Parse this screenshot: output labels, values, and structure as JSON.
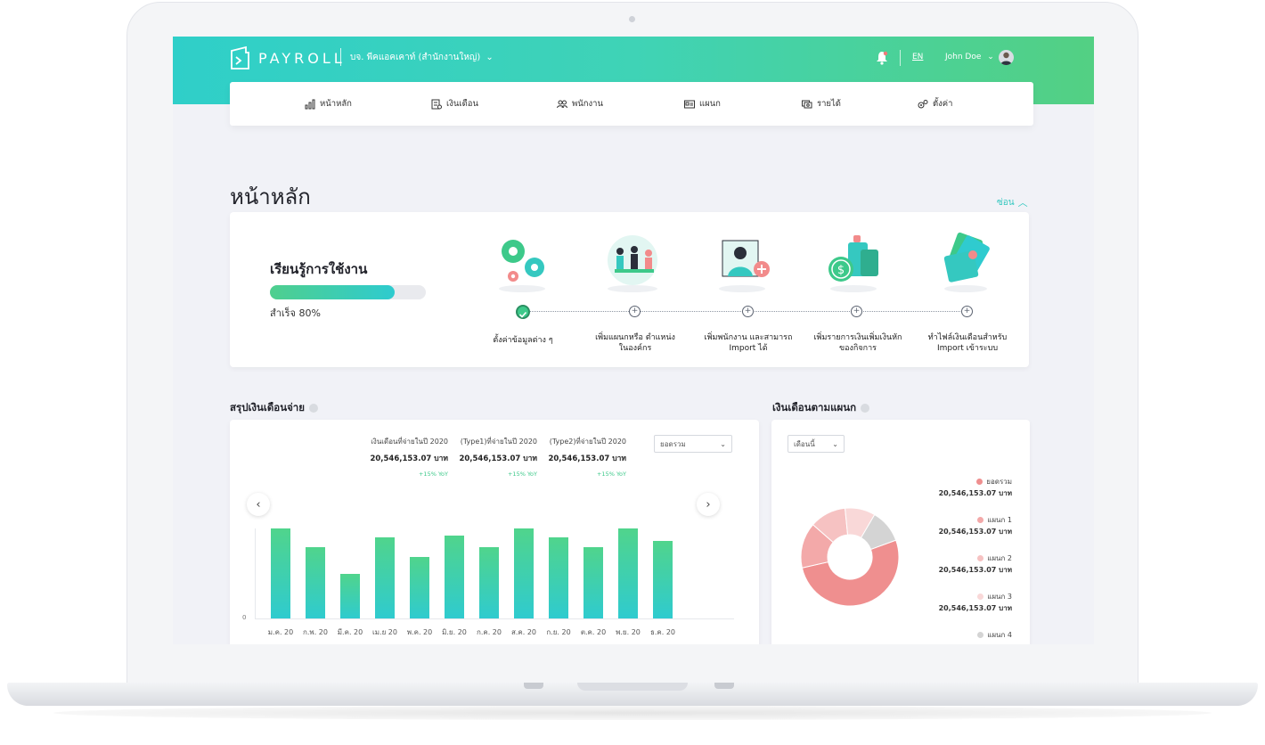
{
  "header": {
    "logo_text": "PAYROLL",
    "company": "บจ. พีคแอคเคาท์ (สำนักงานใหญ่)",
    "language": "EN",
    "user_name": "John Doe"
  },
  "nav": [
    {
      "label": "หน้าหลัก",
      "icon": "bar-chart-icon"
    },
    {
      "label": "เงินเดือน",
      "icon": "payroll-icon"
    },
    {
      "label": "พนักงาน",
      "icon": "people-icon"
    },
    {
      "label": "แผนก",
      "icon": "id-card-icon"
    },
    {
      "label": "รายได้",
      "icon": "money-icon"
    },
    {
      "label": "ตั้งค่า",
      "icon": "gears-icon"
    }
  ],
  "page": {
    "title": "หน้าหลัก",
    "hide_label": "ซ่อน"
  },
  "learning": {
    "title": "เรียนรู้การใช้งาน",
    "progress_percent": 80,
    "progress_text": "สำเร็จ 80%",
    "steps": [
      {
        "line1": "ตั้งค่าข้อมูลต่าง ๆ",
        "line2": "",
        "done": true
      },
      {
        "line1": "เพิ่มแผนกหรือ ตำแหน่ง",
        "line2": "ในองค์กร",
        "done": false
      },
      {
        "line1": "เพิ่มพนักงาน และสามารถ",
        "line2": "Import ได้",
        "done": false
      },
      {
        "line1": "เพิ่มรายการเงินเพิ่มเงินหัก",
        "line2": "ของกิจการ",
        "done": false
      },
      {
        "line1": "ทำไฟล์เงินเดือนสำหรับ",
        "line2": "Import เข้าระบบ",
        "done": false
      }
    ]
  },
  "salary_summary": {
    "title": "สรุปเงินเดือนจ่าย",
    "stats": [
      {
        "label": "เงินเดือนที่จ่ายในปี 2020",
        "value": "20,546,153.07 บาท",
        "change": "+15% YoY"
      },
      {
        "label": "(Type1)ที่จ่ายในปี 2020",
        "value": "20,546,153.07 บาท",
        "change": "+15% YoY"
      },
      {
        "label": "(Type2)ที่จ่ายในปี 2020",
        "value": "20,546,153.07 บาท",
        "change": "+15% YoY"
      }
    ],
    "select_value": "ยอดรวม",
    "prev_label": "‹",
    "next_label": "›",
    "y_zero": "0"
  },
  "chart_data": {
    "type": "bar",
    "categories": [
      "ม.ค. 20",
      "ก.พ. 20",
      "มี.ค. 20",
      "เม.ย 20",
      "พ.ค. 20",
      "มิ.ย. 20",
      "ก.ค. 20",
      "ส.ค. 20",
      "ก.ย. 20",
      "ต.ค. 20",
      "พ.ย. 20",
      "ธ.ค. 20"
    ],
    "values": [
      100,
      79,
      50,
      90,
      68,
      92,
      79,
      100,
      90,
      79,
      100,
      86
    ],
    "ylim": [
      0,
      100
    ],
    "title": "",
    "xlabel": "",
    "ylabel": ""
  },
  "department": {
    "title": "เงินเดือนตามแผนก",
    "select_value": "เดือนนี้",
    "donut_slices": [
      {
        "name": "ยอดรวม",
        "share": 0.52,
        "color": "#ef8f8f"
      },
      {
        "name": "แผนก 1",
        "share": 0.15,
        "color": "#f3a9a9"
      },
      {
        "name": "แผนก 2",
        "share": 0.12,
        "color": "#f6c2c2"
      },
      {
        "name": "แผนก 3",
        "share": 0.1,
        "color": "#f9d8d8"
      },
      {
        "name": "แผนก 4",
        "share": 0.11,
        "color": "#d4d4d4"
      }
    ],
    "legend": [
      {
        "name": "ยอดรวม",
        "value": "20,546,153.07 บาท",
        "color": "#ef8f8f"
      },
      {
        "name": "แผนก 1",
        "value": "20,546,153.07 บาท",
        "color": "#f3a9a9"
      },
      {
        "name": "แผนก 2",
        "value": "20,546,153.07 บาท",
        "color": "#f6c2c2"
      },
      {
        "name": "แผนก 3",
        "value": "20,546,153.07 บาท",
        "color": "#f9d8d8"
      },
      {
        "name": "แผนก 4",
        "value": "",
        "color": "#d4d4d4"
      }
    ]
  },
  "colors": {
    "brand_gradient_start": "#2fcfc9",
    "brand_gradient_end": "#53d083",
    "accent": "#35c8c0",
    "success": "#3dc98a"
  }
}
